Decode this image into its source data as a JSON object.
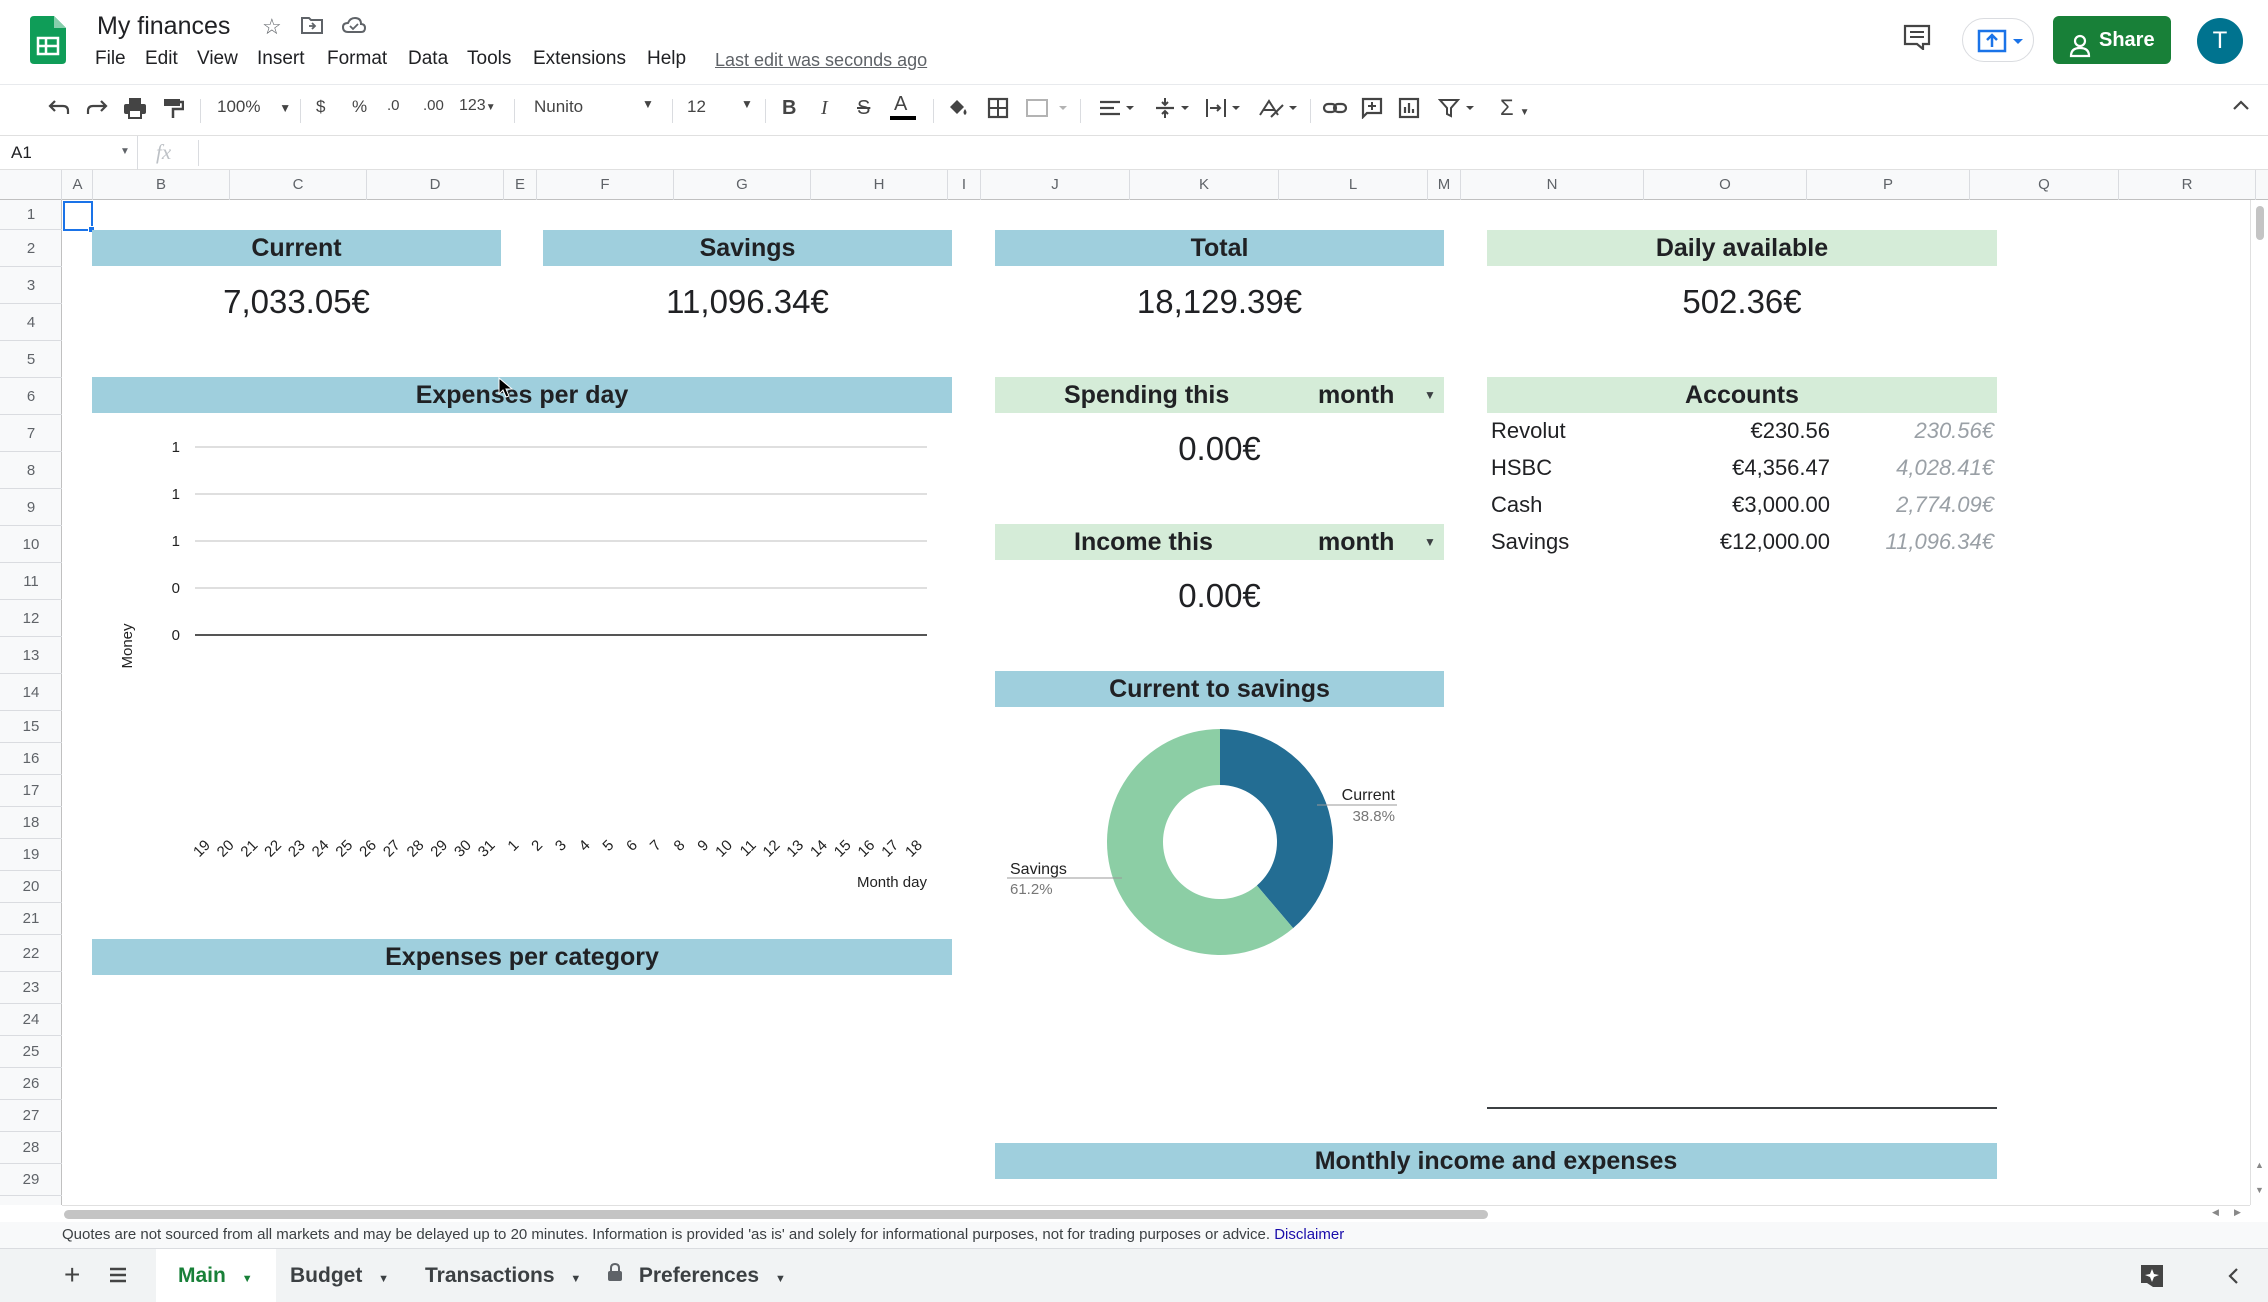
{
  "app": {
    "doc_title": "My finances",
    "menu": [
      "File",
      "Edit",
      "View",
      "Insert",
      "Format",
      "Data",
      "Tools",
      "Extensions",
      "Help"
    ],
    "last_edit": "Last edit was seconds ago",
    "share_label": "Share",
    "avatar_letter": "T",
    "share_color": "#188038"
  },
  "toolbar": {
    "zoom": "100%",
    "currency": "$",
    "percent": "%",
    "dec_decrease": ".0",
    "dec_increase": ".00",
    "format_123": "123",
    "font": "Nunito",
    "font_size": "12"
  },
  "formula_bar": {
    "cell_ref": "A1",
    "fx": "fx",
    "value": ""
  },
  "columns": [
    "A",
    "B",
    "C",
    "D",
    "E",
    "F",
    "G",
    "H",
    "I",
    "J",
    "K",
    "L",
    "M",
    "N",
    "O",
    "P",
    "Q",
    "R"
  ],
  "rows": [
    "1",
    "2",
    "3",
    "4",
    "5",
    "6",
    "7",
    "8",
    "9",
    "10",
    "11",
    "12",
    "13",
    "14",
    "15",
    "16",
    "17",
    "18",
    "19",
    "20",
    "21",
    "22",
    "23",
    "24",
    "25",
    "26",
    "27",
    "28",
    "29"
  ],
  "summary": {
    "current_label": "Current",
    "current_value": "7,033.05€",
    "savings_label": "Savings",
    "savings_value": "11,096.34€",
    "total_label": "Total",
    "total_value": "18,129.39€",
    "daily_label": "Daily available",
    "daily_value": "502.36€"
  },
  "spending": {
    "label": "Spending this",
    "period": "month",
    "value": "0.00€"
  },
  "income": {
    "label": "Income this",
    "period": "month",
    "value": "0.00€"
  },
  "accounts": {
    "title": "Accounts",
    "items": [
      {
        "name": "Revolut",
        "value": "€230.56",
        "adjusted": "230.56€"
      },
      {
        "name": "HSBC",
        "value": "€4,356.47",
        "adjusted": "4,028.41€"
      },
      {
        "name": "Cash",
        "value": "€3,000.00",
        "adjusted": "2,774.09€"
      },
      {
        "name": "Savings",
        "value": "€12,000.00",
        "adjusted": "11,096.34€"
      }
    ]
  },
  "sections": {
    "expenses_per_day": "Expenses per day",
    "expenses_per_category": "Expenses per category",
    "current_to_savings": "Current to savings",
    "monthly_income_expenses": "Monthly income and expenses"
  },
  "chart_data": [
    {
      "type": "line",
      "title": "",
      "xlabel": "Month day",
      "ylabel": "Money",
      "y_tick_labels": [
        "1",
        "1",
        "1",
        "0",
        "0"
      ],
      "categories": [
        "19",
        "20",
        "21",
        "22",
        "23",
        "24",
        "25",
        "26",
        "27",
        "28",
        "29",
        "30",
        "31",
        "1",
        "2",
        "3",
        "4",
        "5",
        "6",
        "7",
        "8",
        "9",
        "10",
        "11",
        "12",
        "13",
        "14",
        "15",
        "16",
        "17",
        "18"
      ],
      "series": [
        {
          "values": [
            0,
            0,
            0,
            0,
            0,
            0,
            0,
            0,
            0,
            0,
            0,
            0,
            0,
            0,
            0,
            0,
            0,
            0,
            0,
            0,
            0,
            0,
            0,
            0,
            0,
            0,
            0,
            0,
            0,
            0,
            0
          ]
        }
      ],
      "grid": true
    },
    {
      "type": "pie",
      "title": "",
      "donut": true,
      "slices": [
        {
          "label": "Current",
          "percent": "38.8%",
          "value": 38.8,
          "color": "#236d93"
        },
        {
          "label": "Savings",
          "percent": "61.2%",
          "value": 61.2,
          "color": "#8ccea5"
        }
      ]
    }
  ],
  "notice": {
    "text": "Quotes are not sourced from all markets and may be delayed up to 20 minutes. Information is provided 'as is' and solely for informational purposes, not for trading purposes or advice.",
    "link": "Disclaimer"
  },
  "sheets": [
    {
      "name": "Main",
      "active": true
    },
    {
      "name": "Budget",
      "active": false
    },
    {
      "name": "Transactions",
      "active": false
    },
    {
      "name": "Preferences",
      "active": false
    }
  ]
}
